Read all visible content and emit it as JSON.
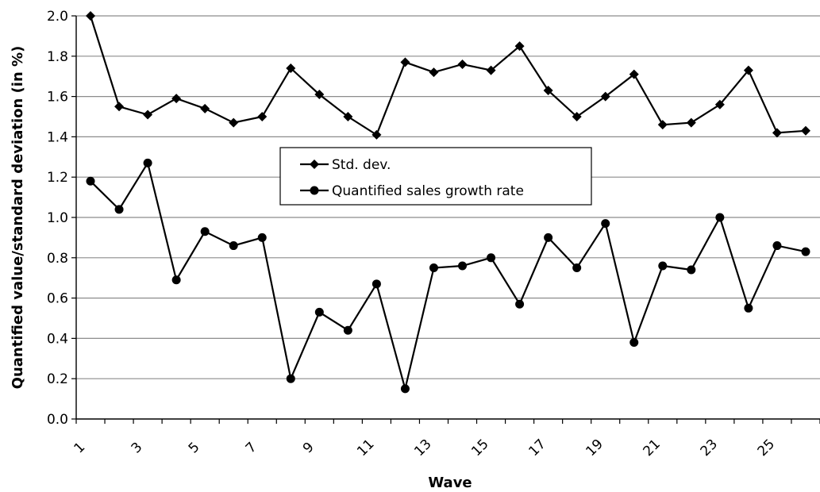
{
  "chart_data": {
    "type": "line",
    "title": "",
    "xlabel": "Wave",
    "ylabel": "Quantified value/standard deviation (in %)",
    "ylim": [
      0,
      2.0
    ],
    "yticks": [
      "0.0",
      "0.2",
      "0.4",
      "0.6",
      "0.8",
      "1.0",
      "1.2",
      "1.4",
      "1.6",
      "1.8",
      "2.0"
    ],
    "x": [
      1,
      2,
      3,
      4,
      5,
      6,
      7,
      8,
      9,
      10,
      11,
      12,
      13,
      14,
      15,
      16,
      17,
      18,
      19,
      20,
      21,
      22,
      23,
      24,
      25,
      26
    ],
    "xticks": [
      "1",
      "3",
      "5",
      "7",
      "9",
      "11",
      "13",
      "15",
      "17",
      "19",
      "21",
      "23",
      "25"
    ],
    "grid": "horizontal",
    "legend_position": "center",
    "series": [
      {
        "name": "Std. dev.",
        "marker": "diamond",
        "values": [
          2.0,
          1.55,
          1.51,
          1.59,
          1.54,
          1.47,
          1.5,
          1.74,
          1.61,
          1.5,
          1.41,
          1.77,
          1.72,
          1.76,
          1.73,
          1.85,
          1.63,
          1.5,
          1.6,
          1.71,
          1.46,
          1.47,
          1.56,
          1.73,
          1.42,
          1.43
        ]
      },
      {
        "name": "Quantified sales growth rate",
        "marker": "circle",
        "values": [
          1.18,
          1.04,
          1.27,
          0.69,
          0.93,
          0.86,
          0.9,
          0.2,
          0.53,
          0.44,
          0.67,
          0.15,
          0.75,
          0.76,
          0.8,
          0.57,
          0.9,
          0.75,
          0.97,
          0.38,
          0.76,
          0.74,
          1.0,
          0.55,
          0.86,
          0.83
        ]
      }
    ]
  }
}
